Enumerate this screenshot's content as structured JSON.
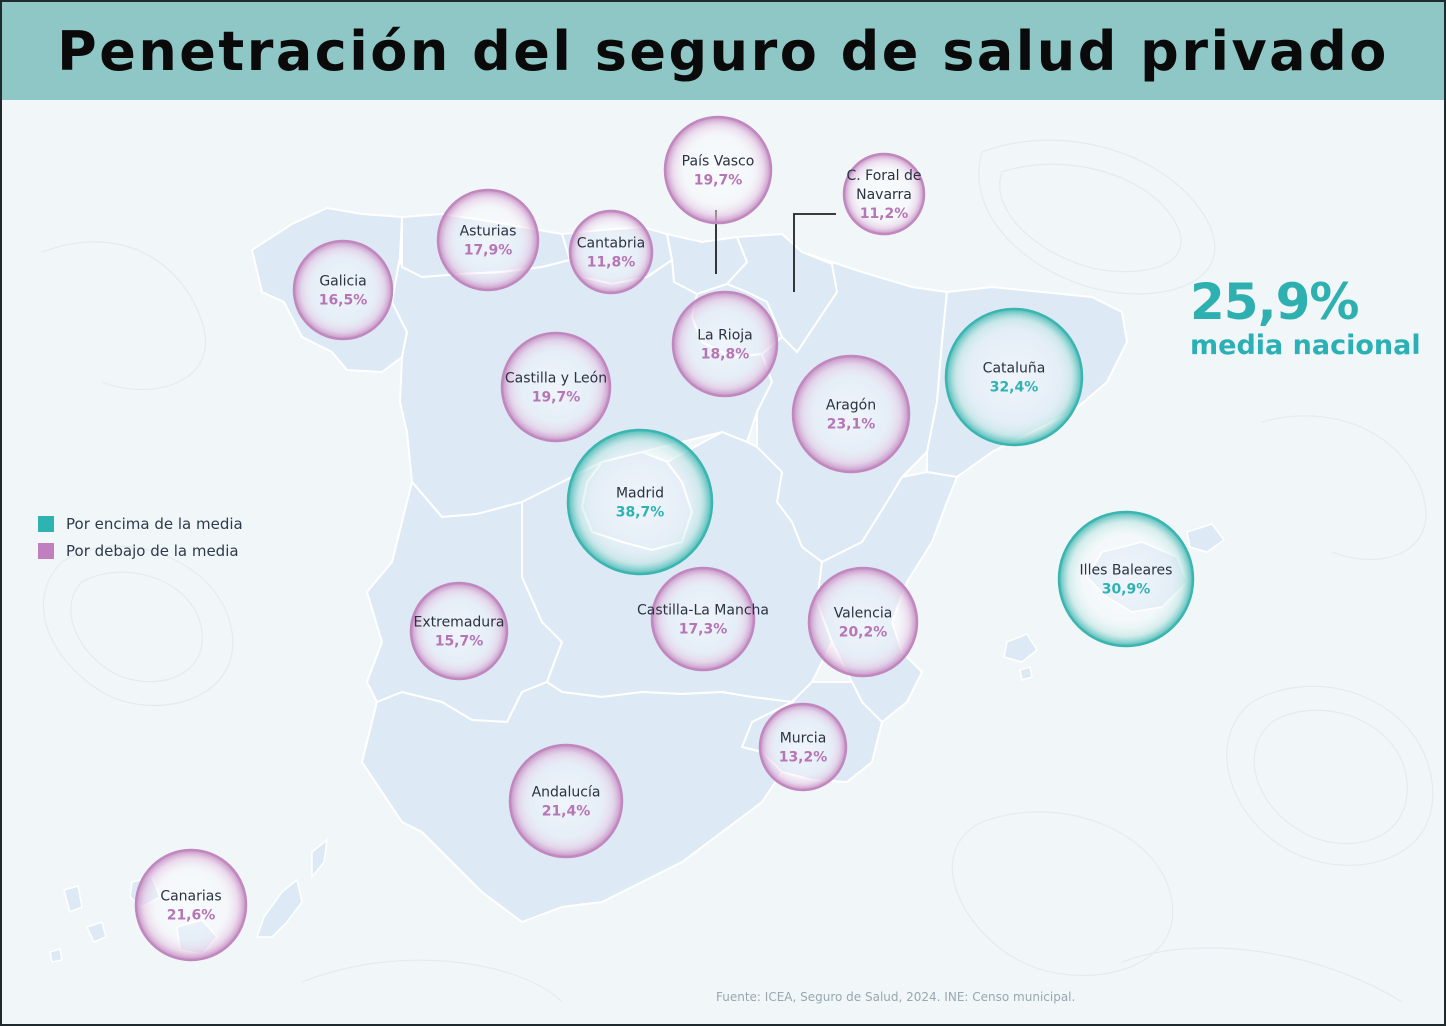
{
  "title": "Penetración del seguro de salud privado",
  "legend": {
    "above": {
      "label": "Por encima de la media",
      "color": "#2fb3b0"
    },
    "below": {
      "label": "Por debajo de la media",
      "color": "#c07fbe"
    }
  },
  "national_average": {
    "value": "25,9%",
    "label": "media nacional",
    "color": "#2fb0b0"
  },
  "source": "Fuente: ICEA, Seguro de Salud, 2024. INE: Censo municipal.",
  "colors": {
    "above": "#2fb3b0",
    "below": "#b675b4",
    "land": "#dde9f5",
    "border": "#ffffff"
  },
  "regions": [
    {
      "key": "pais-vasco",
      "name": "País Vasco",
      "value": "19,7%",
      "status": "below"
    },
    {
      "key": "navarra",
      "name": "C. Foral de Navarra",
      "value": "11,2%",
      "status": "below"
    },
    {
      "key": "asturias",
      "name": "Asturias",
      "value": "17,9%",
      "status": "below"
    },
    {
      "key": "cantabria",
      "name": "Cantabria",
      "value": "11,8%",
      "status": "below"
    },
    {
      "key": "galicia",
      "name": "Galicia",
      "value": "16,5%",
      "status": "below"
    },
    {
      "key": "la-rioja",
      "name": "La Rioja",
      "value": "18,8%",
      "status": "below"
    },
    {
      "key": "castilla-leon",
      "name": "Castilla y León",
      "value": "19,7%",
      "status": "below"
    },
    {
      "key": "cataluna",
      "name": "Cataluña",
      "value": "32,4%",
      "status": "above"
    },
    {
      "key": "aragon",
      "name": "Aragón",
      "value": "23,1%",
      "status": "below"
    },
    {
      "key": "madrid",
      "name": "Madrid",
      "value": "38,7%",
      "status": "above"
    },
    {
      "key": "baleares",
      "name": "Illes Baleares",
      "value": "30,9%",
      "status": "above"
    },
    {
      "key": "extremadura",
      "name": "Extremadura",
      "value": "15,7%",
      "status": "below"
    },
    {
      "key": "castilla-la-mancha",
      "name": "Castilla-La Mancha",
      "value": "17,3%",
      "status": "below"
    },
    {
      "key": "valencia",
      "name": "Valencia",
      "value": "20,2%",
      "status": "below"
    },
    {
      "key": "murcia",
      "name": "Murcia",
      "value": "13,2%",
      "status": "below"
    },
    {
      "key": "andalucia",
      "name": "Andalucía",
      "value": "21,4%",
      "status": "below"
    },
    {
      "key": "canarias",
      "name": "Canarias",
      "value": "21,6%",
      "status": "below"
    }
  ]
}
